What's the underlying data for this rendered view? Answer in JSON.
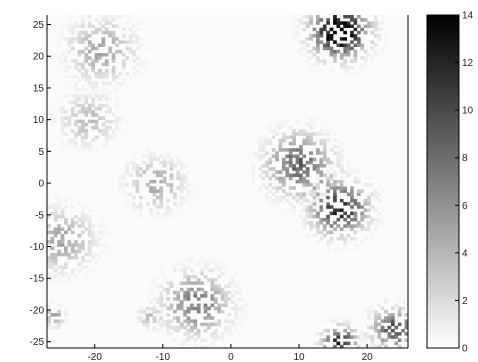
{
  "chart_data": {
    "type": "heatmap",
    "title": "",
    "xlabel": "",
    "ylabel": "",
    "xlim": [
      -27,
      26
    ],
    "ylim": [
      -26,
      26.5
    ],
    "x_ticks": [
      "-20",
      "-10",
      "0",
      "10",
      "20"
    ],
    "y_ticks": [
      "25",
      "20",
      "15",
      "10",
      "5",
      "0",
      "-5",
      "-10",
      "-15",
      "-20",
      "-25"
    ],
    "colorbar": {
      "colormap": "gray-reversed",
      "min": 0,
      "max": 14,
      "ticks": [
        "14",
        "12",
        "10",
        "8",
        "6",
        "4",
        "2",
        "0"
      ]
    },
    "grid": false,
    "clusters": [
      {
        "x": -19,
        "y": 21,
        "peak": 4,
        "spread": 3
      },
      {
        "x": -21,
        "y": 10,
        "peak": 3,
        "spread": 2.5
      },
      {
        "x": -11,
        "y": 0,
        "peak": 4,
        "spread": 2.5
      },
      {
        "x": -25,
        "y": -9,
        "peak": 4,
        "spread": 3
      },
      {
        "x": 16,
        "y": 24,
        "peak": 14,
        "spread": 2.5
      },
      {
        "x": 10,
        "y": 3,
        "peak": 7,
        "spread": 3
      },
      {
        "x": 16,
        "y": -4,
        "peak": 10,
        "spread": 2.5
      },
      {
        "x": -5,
        "y": -19,
        "peak": 6,
        "spread": 3
      },
      {
        "x": -12,
        "y": -21,
        "peak": 3,
        "spread": 1
      },
      {
        "x": 24,
        "y": -23,
        "peak": 8,
        "spread": 2
      },
      {
        "x": 16,
        "y": -25,
        "peak": 10,
        "spread": 1.5
      },
      {
        "x": -26,
        "y": -21,
        "peak": 4,
        "spread": 1
      }
    ]
  }
}
